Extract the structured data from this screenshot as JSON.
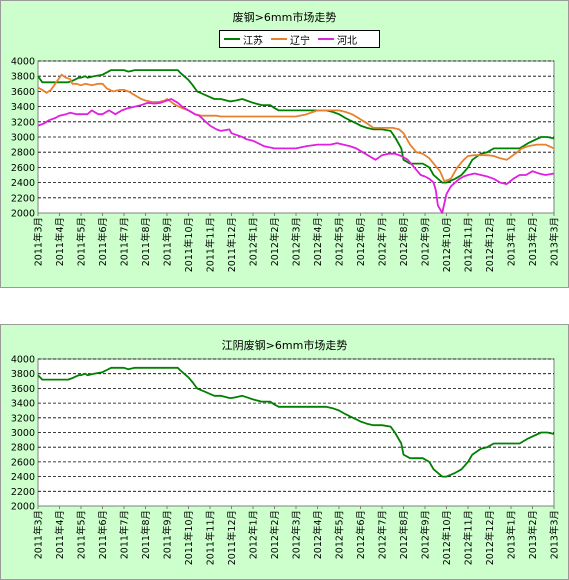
{
  "chart_data": [
    {
      "type": "line",
      "title": "废钢>6mm市场走势",
      "ylim": [
        2000,
        4000
      ],
      "yticks": [
        2000,
        2200,
        2400,
        2600,
        2800,
        3000,
        3200,
        3400,
        3600,
        3800,
        4000
      ],
      "x_months": [
        "2011年3月",
        "2011年4月",
        "2011年5月",
        "2011年6月",
        "2011年7月",
        "2011年8月",
        "2011年9月",
        "2011年10月",
        "2011年11月",
        "2011年12月",
        "2012年1月",
        "2012年2月",
        "2012年3月",
        "2012年4月",
        "2012年5月",
        "2012年6月",
        "2012年7月",
        "2012年8月",
        "2012年9月",
        "2012年10月",
        "2012年11月",
        "2012年12月",
        "2013年1月",
        "2013年2月",
        "2013年3月"
      ],
      "grid": true,
      "legend": "top",
      "series": [
        {
          "name": "江苏",
          "color": "#008000",
          "x": [
            0,
            0.2,
            1.4,
            1.6,
            1.9,
            2.0,
            2.2,
            2.3,
            2.6,
            3.0,
            3.2,
            3.4,
            4.0,
            4.2,
            4.5,
            5.5,
            6.5,
            6.6,
            6.8,
            7.0,
            7.2,
            7.4,
            7.8,
            8.2,
            8.5,
            8.9,
            9.0,
            9.2,
            9.5,
            9.7,
            10.0,
            10.4,
            10.8,
            11.0,
            11.2,
            12.0,
            13.0,
            13.4,
            13.7,
            14.0,
            14.3,
            14.5,
            14.8,
            15.0,
            15.3,
            15.6,
            16.0,
            16.4,
            16.6,
            16.9,
            17.0,
            17.3,
            17.6,
            17.9,
            18.2,
            18.4,
            18.8,
            19.0,
            19.4,
            19.7,
            20.0,
            20.2,
            20.6,
            20.9,
            21.2,
            21.6,
            22.0,
            22.4,
            22.8,
            23.4,
            23.7,
            24.0
          ],
          "y": [
            3800,
            3720,
            3720,
            3740,
            3780,
            3780,
            3800,
            3780,
            3800,
            3820,
            3850,
            3880,
            3880,
            3860,
            3880,
            3880,
            3880,
            3850,
            3800,
            3750,
            3680,
            3600,
            3550,
            3500,
            3500,
            3470,
            3470,
            3480,
            3500,
            3480,
            3450,
            3420,
            3420,
            3380,
            3350,
            3350,
            3350,
            3350,
            3330,
            3300,
            3250,
            3220,
            3180,
            3150,
            3120,
            3100,
            3100,
            3080,
            3000,
            2850,
            2700,
            2650,
            2650,
            2650,
            2600,
            2500,
            2400,
            2400,
            2450,
            2500,
            2600,
            2700,
            2780,
            2800,
            2850,
            2850,
            2850,
            2850,
            2920,
            3000,
            3000,
            2980
          ]
        },
        {
          "name": "辽宁",
          "color": "#e8812c",
          "x": [
            0,
            0.2,
            0.4,
            0.6,
            0.8,
            1.0,
            1.1,
            1.3,
            1.5,
            1.6,
            1.8,
            2.0,
            2.2,
            2.5,
            2.8,
            3.0,
            3.2,
            3.5,
            3.8,
            4.0,
            4.2,
            4.5,
            4.8,
            5.0,
            5.3,
            5.6,
            5.9,
            6.0,
            6.2,
            6.4,
            6.7,
            7.0,
            7.3,
            7.6,
            8.0,
            8.3,
            8.5,
            9.0,
            9.5,
            10.0,
            10.5,
            11.0,
            11.5,
            12.0,
            12.5,
            13.0,
            13.3,
            13.6,
            14.0,
            14.3,
            14.6,
            14.9,
            15.3,
            15.6,
            16.0,
            16.5,
            16.8,
            17.0,
            17.3,
            17.6,
            17.9,
            18.2,
            18.4,
            18.7,
            18.9,
            19.2,
            19.5,
            19.8,
            20.0,
            20.3,
            20.6,
            20.9,
            21.2,
            21.5,
            21.8,
            22.2,
            22.5,
            22.8,
            23.2,
            23.6,
            24.0
          ],
          "y": [
            3650,
            3620,
            3580,
            3620,
            3700,
            3780,
            3820,
            3780,
            3760,
            3700,
            3700,
            3680,
            3700,
            3680,
            3700,
            3700,
            3640,
            3600,
            3620,
            3620,
            3600,
            3550,
            3500,
            3480,
            3460,
            3460,
            3480,
            3500,
            3460,
            3420,
            3380,
            3350,
            3300,
            3280,
            3280,
            3280,
            3270,
            3270,
            3270,
            3270,
            3270,
            3270,
            3270,
            3270,
            3300,
            3350,
            3350,
            3350,
            3350,
            3330,
            3300,
            3250,
            3180,
            3120,
            3120,
            3120,
            3100,
            3050,
            2900,
            2800,
            2780,
            2720,
            2650,
            2550,
            2420,
            2450,
            2600,
            2700,
            2750,
            2760,
            2760,
            2760,
            2750,
            2720,
            2700,
            2780,
            2850,
            2880,
            2900,
            2900,
            2850
          ]
        },
        {
          "name": "河北",
          "color": "#e020e0",
          "x": [
            0,
            0.3,
            0.5,
            0.8,
            1.0,
            1.3,
            1.5,
            1.8,
            2.0,
            2.3,
            2.5,
            2.8,
            3.0,
            3.3,
            3.6,
            3.9,
            4.2,
            4.5,
            4.8,
            5.1,
            5.4,
            5.7,
            6.0,
            6.2,
            6.5,
            6.7,
            7.0,
            7.3,
            7.5,
            7.8,
            8.0,
            8.3,
            8.5,
            8.9,
            9.0,
            9.5,
            9.7,
            10.0,
            10.5,
            11.0,
            11.5,
            12.0,
            12.5,
            13.0,
            13.3,
            13.6,
            13.9,
            14.2,
            14.5,
            14.8,
            15.1,
            15.4,
            15.7,
            16.0,
            16.3,
            16.6,
            16.9,
            17.2,
            17.5,
            17.8,
            18.0,
            18.2,
            18.4,
            18.5,
            18.6,
            18.8,
            19.0,
            19.2,
            19.4,
            19.6,
            19.8,
            20.0,
            20.3,
            20.6,
            20.9,
            21.2,
            21.5,
            21.8,
            22.1,
            22.4,
            22.7,
            23.0,
            23.3,
            23.6,
            24.0
          ],
          "y": [
            3150,
            3180,
            3220,
            3250,
            3280,
            3300,
            3320,
            3300,
            3300,
            3300,
            3350,
            3300,
            3300,
            3350,
            3300,
            3350,
            3380,
            3400,
            3420,
            3450,
            3440,
            3450,
            3480,
            3500,
            3450,
            3400,
            3350,
            3300,
            3280,
            3200,
            3150,
            3100,
            3080,
            3100,
            3050,
            3000,
            2970,
            2950,
            2880,
            2850,
            2850,
            2850,
            2880,
            2900,
            2900,
            2900,
            2920,
            2900,
            2880,
            2850,
            2800,
            2750,
            2700,
            2760,
            2780,
            2780,
            2750,
            2700,
            2600,
            2500,
            2480,
            2450,
            2400,
            2300,
            2100,
            2000,
            2250,
            2350,
            2400,
            2450,
            2480,
            2500,
            2520,
            2500,
            2480,
            2450,
            2400,
            2380,
            2450,
            2500,
            2500,
            2550,
            2520,
            2500,
            2520
          ]
        }
      ]
    },
    {
      "type": "line",
      "title": "江阴废钢>6mm市场走势",
      "ylim": [
        2000,
        4000
      ],
      "yticks": [
        2000,
        2200,
        2400,
        2600,
        2800,
        3000,
        3200,
        3400,
        3600,
        3800,
        4000
      ],
      "x_months": [
        "2011年3月",
        "2011年4月",
        "2011年5月",
        "2011年6月",
        "2011年7月",
        "2011年8月",
        "2011年9月",
        "2011年10月",
        "2011年11月",
        "2011年12月",
        "2012年1月",
        "2012年2月",
        "2012年3月",
        "2012年4月",
        "2012年5月",
        "2012年6月",
        "2012年7月",
        "2012年8月",
        "2012年9月",
        "2012年10月",
        "2012年11月",
        "2012年12月",
        "2013年1月",
        "2013年2月",
        "2013年3月"
      ],
      "grid": true,
      "series": [
        {
          "color": "#008000",
          "x": [
            0,
            0.2,
            1.4,
            1.6,
            1.9,
            2.0,
            2.2,
            2.3,
            2.6,
            3.0,
            3.2,
            3.4,
            4.0,
            4.2,
            4.5,
            5.5,
            6.5,
            6.6,
            6.8,
            7.0,
            7.2,
            7.4,
            7.8,
            8.2,
            8.5,
            8.9,
            9.0,
            9.2,
            9.5,
            9.7,
            10.0,
            10.4,
            10.8,
            11.0,
            11.2,
            12.0,
            13.0,
            13.4,
            13.7,
            14.0,
            14.3,
            14.5,
            14.8,
            15.0,
            15.3,
            15.6,
            16.0,
            16.4,
            16.6,
            16.9,
            17.0,
            17.3,
            17.6,
            17.9,
            18.2,
            18.4,
            18.8,
            19.0,
            19.4,
            19.7,
            20.0,
            20.2,
            20.6,
            20.9,
            21.2,
            21.6,
            22.0,
            22.4,
            22.8,
            23.4,
            23.7,
            24.0
          ],
          "y": [
            3780,
            3720,
            3720,
            3740,
            3780,
            3780,
            3800,
            3780,
            3800,
            3820,
            3850,
            3880,
            3880,
            3860,
            3880,
            3880,
            3880,
            3850,
            3800,
            3750,
            3680,
            3600,
            3550,
            3500,
            3500,
            3470,
            3470,
            3480,
            3500,
            3480,
            3450,
            3420,
            3420,
            3380,
            3350,
            3350,
            3350,
            3350,
            3330,
            3300,
            3250,
            3220,
            3180,
            3150,
            3120,
            3100,
            3100,
            3080,
            3000,
            2850,
            2700,
            2650,
            2650,
            2650,
            2600,
            2500,
            2400,
            2400,
            2450,
            2500,
            2600,
            2700,
            2780,
            2800,
            2850,
            2850,
            2850,
            2850,
            2920,
            3000,
            3000,
            2980
          ]
        }
      ]
    }
  ]
}
